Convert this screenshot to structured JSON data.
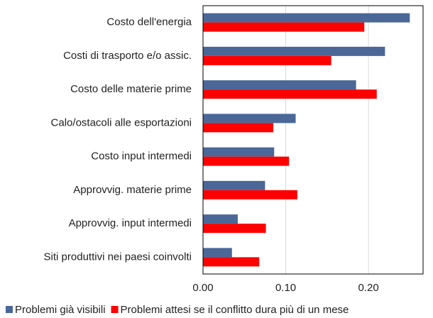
{
  "chart_data": {
    "type": "barh",
    "categories": [
      "Costo dell'energia",
      "Costi di trasporto e/o assic.",
      "Costo delle materie prime",
      "Calo/ostacoli alle esportazioni",
      "Costo input intermedi",
      "Approvvig. materie prime",
      "Approvvig. input intermedi",
      "Siti produttivi nei paesi coinvolti"
    ],
    "series": [
      {
        "name": "Problemi già visibili",
        "color": "#4a6798",
        "values": [
          0.25,
          0.22,
          0.185,
          0.112,
          0.086,
          0.075,
          0.042,
          0.035
        ]
      },
      {
        "name": "Problemi attesi se il conflitto dura più di un mese",
        "color": "#ff0000",
        "values": [
          0.195,
          0.155,
          0.21,
          0.085,
          0.104,
          0.114,
          0.076,
          0.068
        ]
      }
    ],
    "xlim": [
      0,
      0.266
    ],
    "xticks": [
      {
        "value": 0,
        "label": "0.00"
      },
      {
        "value": 0.1,
        "label": "0.10"
      },
      {
        "value": 0.2,
        "label": "0.20"
      }
    ],
    "grid": true,
    "legend": "bottom"
  }
}
